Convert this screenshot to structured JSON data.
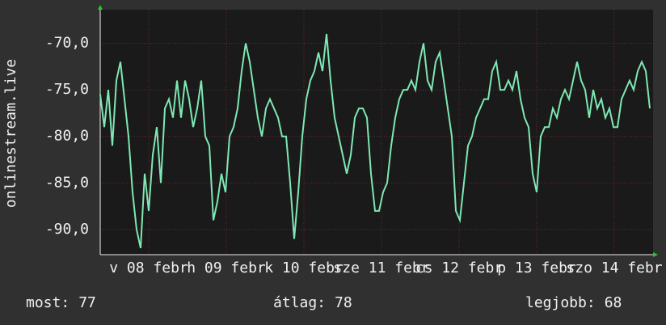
{
  "chart_data": {
    "type": "line",
    "y_label": "onlinestream.live",
    "xlim": [
      0,
      171
    ],
    "ylim": [
      -92.7,
      -66.4
    ],
    "yticks": [
      {
        "value": -90,
        "label": "-90,0"
      },
      {
        "value": -85,
        "label": "-85,0"
      },
      {
        "value": -80,
        "label": "-80,0"
      },
      {
        "value": -75,
        "label": "-75,0"
      },
      {
        "value": -70,
        "label": "-70,0"
      }
    ],
    "xticks": [
      {
        "value": 15,
        "label": "v 08 febr"
      },
      {
        "value": 39,
        "label": "h 09 febr"
      },
      {
        "value": 63,
        "label": "k 10 febr"
      },
      {
        "value": 87,
        "label": "sze 11 febr"
      },
      {
        "value": 111,
        "label": "cs 12 febr"
      },
      {
        "value": 135,
        "label": "p 13 febr"
      },
      {
        "value": 159,
        "label": "szo 14 febr"
      }
    ],
    "grid": true,
    "x": [
      0,
      1.25,
      2.5,
      3.75,
      5,
      6.25,
      7.5,
      8.75,
      10,
      11.25,
      12.5,
      13.75,
      15,
      16.25,
      17.5,
      18.75,
      20,
      21.25,
      22.5,
      23.75,
      25,
      26.25,
      27.5,
      28.75,
      30,
      31.25,
      32.5,
      33.75,
      35,
      36.25,
      37.5,
      38.75,
      40,
      41.25,
      42.5,
      43.75,
      45,
      46.25,
      47.5,
      48.75,
      50,
      51.25,
      52.5,
      53.75,
      55,
      56.25,
      57.5,
      58.75,
      60,
      61.25,
      62.5,
      63.75,
      65,
      66.25,
      67.5,
      68.75,
      70,
      71.25,
      72.5,
      73.75,
      75,
      76.25,
      77.5,
      78.75,
      80,
      81.25,
      82.5,
      83.75,
      85,
      86.25,
      87.5,
      88.75,
      90,
      91.25,
      92.5,
      93.75,
      95,
      96.25,
      97.5,
      98.75,
      100,
      101.25,
      102.5,
      103.75,
      105,
      106.25,
      107.5,
      108.75,
      110,
      111.25,
      112.5,
      113.75,
      115,
      116.25,
      117.5,
      118.75,
      120,
      121.25,
      122.5,
      123.75,
      125,
      126.25,
      127.5,
      128.75,
      130,
      131.25,
      132.5,
      133.75,
      135,
      136.25,
      137.5,
      138.75,
      140,
      141.25,
      142.5,
      143.75,
      145,
      146.25,
      147.5,
      148.75,
      150,
      151.25,
      152.5,
      153.75,
      155,
      156.25,
      157.5,
      158.75,
      160,
      161.25,
      162.5,
      163.75,
      165,
      166.25,
      167.5,
      168.75,
      170
    ],
    "series": [
      {
        "name": "onlinestream.live",
        "color": "#7ee8b4",
        "values": [
          -75.5,
          -79,
          -75,
          -81,
          -74,
          -72,
          -76,
          -80,
          -86,
          -90,
          -92,
          -84,
          -88,
          -82,
          -79,
          -85,
          -77,
          -76,
          -78,
          -74,
          -78,
          -74,
          -76,
          -79,
          -77,
          -74,
          -80,
          -81,
          -89,
          -87,
          -84,
          -86,
          -80,
          -79,
          -77,
          -73,
          -70,
          -72,
          -75,
          -78,
          -80,
          -77,
          -76,
          -77,
          -78,
          -80,
          -80,
          -85,
          -91,
          -86,
          -80,
          -76,
          -74,
          -73,
          -71,
          -73,
          -69,
          -74,
          -78,
          -80,
          -82,
          -84,
          -82,
          -78,
          -77,
          -77,
          -78,
          -84,
          -88,
          -88,
          -86,
          -85,
          -81,
          -78,
          -76,
          -75,
          -75,
          -74,
          -75,
          -72,
          -70,
          -74,
          -75,
          -72,
          -71,
          -74,
          -77,
          -80,
          -88,
          -89,
          -85,
          -81,
          -80,
          -78,
          -77,
          -76,
          -76,
          -73,
          -72,
          -75,
          -75,
          -74,
          -75,
          -73,
          -76,
          -78,
          -79,
          -84,
          -86,
          -80,
          -79,
          -79,
          -77,
          -78,
          -76,
          -75,
          -76,
          -74,
          -72,
          -74,
          -75,
          -78,
          -75,
          -77,
          -76,
          -78,
          -77,
          -79,
          -79,
          -76,
          -75,
          -74,
          -75,
          -73,
          -72,
          -73,
          -77
        ]
      }
    ],
    "stats": [
      {
        "label": "most:",
        "value": 77
      },
      {
        "label": "átlag:",
        "value": 78
      },
      {
        "label": "legjobb:",
        "value": 68
      }
    ]
  }
}
